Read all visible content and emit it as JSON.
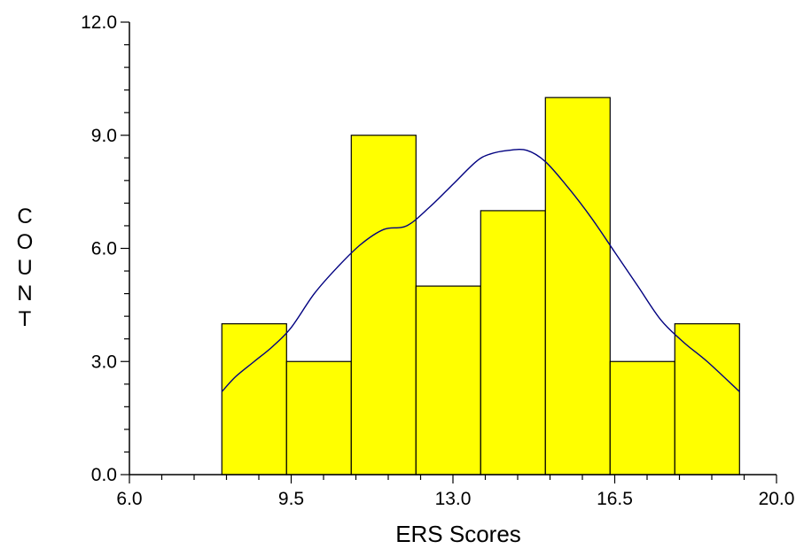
{
  "chart_data": {
    "type": "bar",
    "title": "",
    "xlabel": "ERS Scores",
    "ylabel": "COUNT",
    "xlim": [
      6.0,
      20.0
    ],
    "ylim": [
      0.0,
      12.0
    ],
    "x_ticks": [
      "6.0",
      "9.5",
      "13.0",
      "16.5",
      "20.0"
    ],
    "y_ticks": [
      "0.0",
      "3.0",
      "6.0",
      "9.0",
      "12.0"
    ],
    "bin_edges": [
      8.0,
      9.4,
      10.8,
      12.2,
      13.6,
      15.0,
      16.4,
      17.8,
      19.2
    ],
    "values": [
      4,
      3,
      9,
      5,
      7,
      10,
      3,
      4
    ],
    "density_curve": {
      "x": [
        8.0,
        8.3,
        8.7,
        9.1,
        9.5,
        10.0,
        10.5,
        11.0,
        11.5,
        12.0,
        12.5,
        13.0,
        13.5,
        13.8,
        14.2,
        14.6,
        15.0,
        15.5,
        16.0,
        16.5,
        17.0,
        17.5,
        18.0,
        18.5,
        19.2
      ],
      "y": [
        2.2,
        2.6,
        3.0,
        3.4,
        3.9,
        4.8,
        5.5,
        6.1,
        6.5,
        6.6,
        7.1,
        7.7,
        8.3,
        8.5,
        8.6,
        8.6,
        8.3,
        7.6,
        6.8,
        5.9,
        5.0,
        4.1,
        3.5,
        3.0,
        2.2
      ]
    },
    "grid": false,
    "colors": {
      "bar_fill": "#FFFF00",
      "bar_edge": "#000000",
      "curve": "#000080",
      "axis": "#000000"
    }
  }
}
